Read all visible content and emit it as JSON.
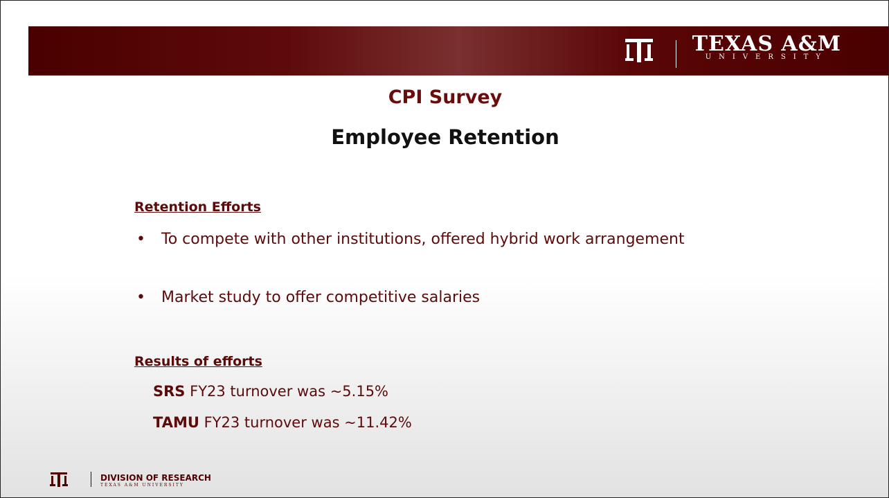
{
  "header": {
    "brand": "TEXAS A&M",
    "brand_sub": "UNIVERSITY"
  },
  "title": "CPI Survey",
  "subtitle": "Employee Retention",
  "sections": [
    {
      "heading": "Retention Efforts",
      "bullets": [
        "To compete with other institutions, offered hybrid work arrangement",
        "Market study to offer competitive salaries"
      ]
    },
    {
      "heading": "Results of efforts",
      "lines": [
        {
          "label": "SRS",
          "text": "FY23 turnover was ~5.15%"
        },
        {
          "label": "TAMU",
          "text": "FY23 turnover was ~11.42%"
        }
      ]
    }
  ],
  "footer": {
    "division": "DIVISION OF RESEARCH",
    "university": "TEXAS A&M UNIVERSITY"
  }
}
